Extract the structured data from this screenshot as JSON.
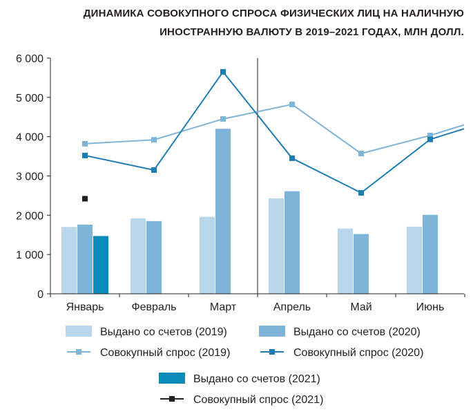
{
  "chart_data": {
    "type": "bar+line",
    "title_lines": [
      "ДИНАМИКА СОВОКУПНОГО СПРОСА ФИЗИЧЕСКИХ ЛИЦ НА НАЛИЧНУЮ",
      "ИНОСТРАННУЮ ВАЛЮТУ В 2019–2021 ГОДАХ, МЛН ДОЛЛ."
    ],
    "categories": [
      "Январь",
      "Февраль",
      "Март",
      "Апрель",
      "Май",
      "Июнь"
    ],
    "ylim": [
      0,
      6000
    ],
    "yticks": [
      0,
      1000,
      2000,
      3000,
      4000,
      5000,
      6000
    ],
    "ytick_labels": [
      "0",
      "1 000",
      "2 000",
      "3 000",
      "4 000",
      "5 000",
      "6 000"
    ],
    "bar_series": [
      {
        "name": "Выдано со счетов (2019)",
        "color": "#b9d7ea",
        "values": [
          1700,
          1920,
          1960,
          2430,
          1660,
          1710
        ]
      },
      {
        "name": "Выдано со счетов (2020)",
        "color": "#7fb4d9",
        "values": [
          1760,
          1850,
          4200,
          2610,
          1520,
          2010
        ]
      },
      {
        "name": "Выдано со счетов (2021)",
        "color": "#0b89b8",
        "values": [
          1470,
          null,
          null,
          null,
          null,
          null
        ]
      }
    ],
    "line_series": [
      {
        "name": "Совокупный спрос (2019)",
        "color": "#7fb4d9",
        "values": [
          3820,
          3920,
          4450,
          4820,
          3570,
          4030
        ],
        "end_value": 4300
      },
      {
        "name": "Совокупный спрос (2020)",
        "color": "#1b7db3",
        "values": [
          3520,
          3150,
          5650,
          3450,
          2570,
          3930
        ],
        "end_value": 4200
      },
      {
        "name": "Совокупный спрос (2021)",
        "color": "#231f20",
        "values": [
          2420,
          null,
          null,
          null,
          null,
          null
        ]
      }
    ],
    "divider_after_category": "Март",
    "grid": false,
    "legend_placement": "bottom"
  }
}
